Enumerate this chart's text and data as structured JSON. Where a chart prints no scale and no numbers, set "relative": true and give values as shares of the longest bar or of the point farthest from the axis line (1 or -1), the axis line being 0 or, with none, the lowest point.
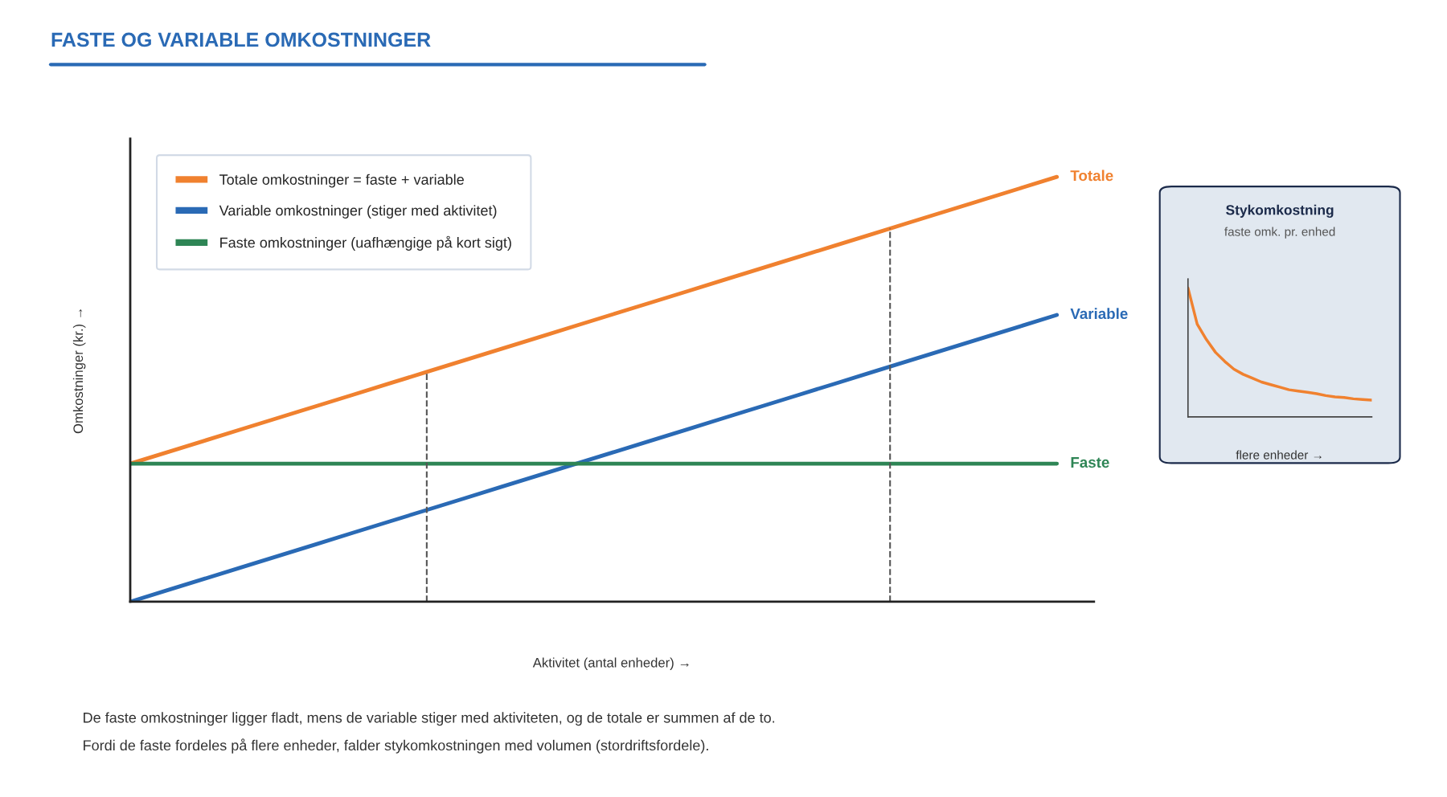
{
  "chart_data": [
    {
      "type": "line",
      "title": "FASTE OG VARIABLE OMKOSTNINGER",
      "xlabel": "Aktivitet (antal enheder) →",
      "ylabel": "Omkostninger (kr.) →",
      "relative": true,
      "tick_labels": false,
      "legend": "top left",
      "marker": "none",
      "line_style": "solid",
      "categories": [
        null,
        null,
        null,
        null,
        null,
        null,
        null,
        null,
        null,
        null,
        null,
        null,
        null,
        null,
        null,
        null,
        null,
        null,
        null,
        null,
        null,
        null,
        null,
        null,
        null,
        null
      ],
      "series": [
        {
          "name": "Totale omkostninger = faste + variable",
          "color": "#f0812f",
          "values": [
            0.325,
            0.352,
            0.379,
            0.406,
            0.433,
            0.46,
            0.487,
            0.514,
            0.541,
            0.568,
            0.595,
            0.622,
            0.649,
            0.676,
            0.703,
            0.73,
            0.757,
            0.784,
            0.811,
            0.838,
            0.865,
            0.892,
            0.919,
            0.946,
            0.973,
            1.0
          ]
        },
        {
          "name": "Variable omkostninger (stiger med aktivitet)",
          "color": "#2a6ab5",
          "values": [
            0,
            0.027,
            0.054,
            0.081,
            0.108,
            0.135,
            0.162,
            0.189,
            0.216,
            0.243,
            0.27,
            0.297,
            0.324,
            0.351,
            0.378,
            0.405,
            0.432,
            0.459,
            0.486,
            0.513,
            0.54,
            0.567,
            0.594,
            0.621,
            0.648,
            0.675
          ]
        },
        {
          "name": "Faste omkostninger (uafhængige på kort sigt)",
          "color": "#2e8555",
          "values": [
            0.325,
            0.325,
            0.325,
            0.325,
            0.325,
            0.325,
            0.325,
            0.325,
            0.325,
            0.325,
            0.325,
            0.325,
            0.325,
            0.325,
            0.325,
            0.325,
            0.325,
            0.325,
            0.325,
            0.325,
            0.325,
            0.325,
            0.325,
            0.325,
            0.325,
            0.325
          ]
        }
      ],
      "annotations": [
        "Totale",
        "Variable",
        "Faste",
        "De faste omkostninger ligger fladt, mens de variable stiger med aktiviteten, og de totale er summen af de to.",
        "Fordi de faste fordeles på flere enheder, falder stykomkostningen med volumen (stordriftsfordele)."
      ]
    },
    {
      "type": "line",
      "title": "Stykomkostning",
      "subtitle": "faste omk. pr. enhed",
      "xlabel": "flere enheder →",
      "relative": true,
      "tick_labels": false,
      "marker": "none",
      "categories": [
        null,
        null,
        null,
        null,
        null,
        null,
        null,
        null,
        null,
        null,
        null,
        null,
        null,
        null,
        null,
        null,
        null,
        null,
        null,
        null,
        null
      ],
      "series": [
        {
          "color": "#f0812f",
          "values": [
            1.0,
            0.72,
            0.6,
            0.5,
            0.43,
            0.37,
            0.33,
            0.3,
            0.27,
            0.25,
            0.23,
            0.21,
            0.2,
            0.19,
            0.18,
            0.165,
            0.155,
            0.15,
            0.14,
            0.135,
            0.13
          ]
        }
      ]
    }
  ]
}
